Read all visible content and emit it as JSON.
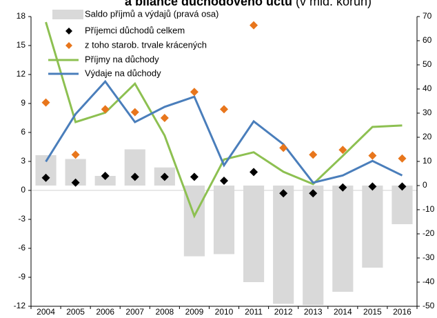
{
  "chart_data": {
    "type": "combo",
    "title": "a bilance důchodového účtu",
    "title_note": "(v mld. korun)",
    "categories": [
      "2004",
      "2005",
      "2006",
      "2007",
      "2008",
      "2009",
      "2010",
      "2011",
      "2012",
      "2013",
      "2014",
      "2015",
      "2016"
    ],
    "ylim": [
      -12,
      18
    ],
    "yticks": [
      -12,
      -9,
      -6,
      -3,
      0,
      3,
      6,
      9,
      12,
      15,
      18
    ],
    "y2lim": [
      -50,
      70
    ],
    "y2ticks": [
      -50,
      -40,
      -30,
      -20,
      -10,
      0,
      10,
      20,
      30,
      40,
      50,
      60,
      70
    ],
    "series": [
      {
        "name": "Saldo příjmů a výdajů (pravá osa)",
        "type": "bar",
        "axis": "y2",
        "color": "#d9d9d9",
        "values": [
          12.6,
          11,
          4,
          15,
          7.5,
          -29.3,
          -28.4,
          -40,
          -49,
          -49.5,
          -44,
          -34,
          -16
        ]
      },
      {
        "name": "Příjemci důchodů celkem",
        "type": "scatter",
        "color": "#000000",
        "values": [
          1.3,
          0.8,
          1.5,
          1.4,
          1.4,
          1.4,
          1.0,
          1.9,
          -0.3,
          -0.3,
          0.3,
          0.4,
          0.4
        ]
      },
      {
        "name": "z toho starob. trvale krácených",
        "type": "scatter",
        "color": "#e8761c",
        "values": [
          9.1,
          3.7,
          8.4,
          8.1,
          7.5,
          10.2,
          8.4,
          17.1,
          4.4,
          3.7,
          4.2,
          3.6,
          3.3
        ]
      },
      {
        "name": "Příjmy na důchody",
        "type": "line",
        "axis": "y2",
        "color": "#8dc051",
        "values": [
          67.7,
          26.3,
          30.2,
          42.2,
          20.7,
          -12.6,
          10.8,
          13.8,
          5.7,
          0.6,
          12.3,
          24.3,
          24.9
        ]
      },
      {
        "name": "Výdaje na důchody",
        "type": "line",
        "axis": "y2",
        "color": "#4a7ebb",
        "values": [
          9.9,
          29.6,
          43.1,
          26.3,
          32.6,
          36.8,
          8.4,
          26.6,
          17.1,
          1.2,
          4.2,
          10.2,
          4.2
        ]
      }
    ]
  }
}
